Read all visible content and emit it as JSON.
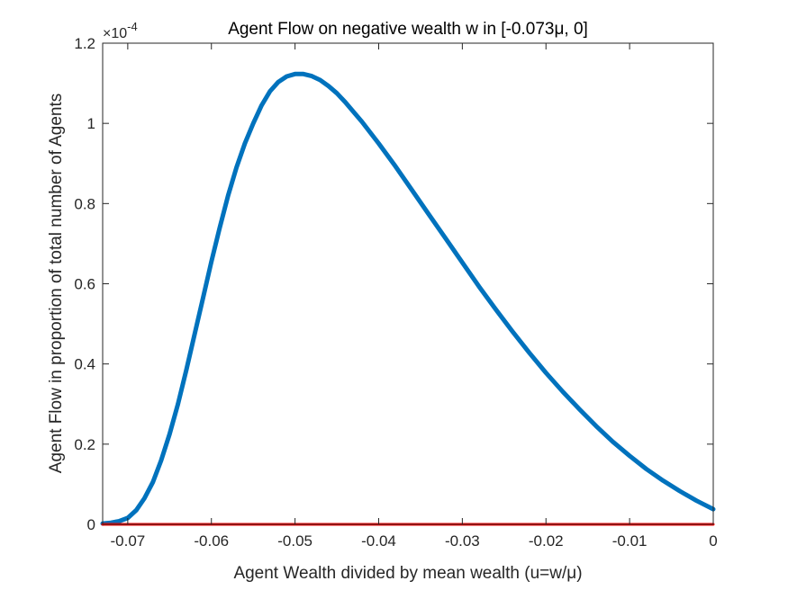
{
  "chart_data": {
    "type": "line",
    "title": "Agent Flow on negative wealth w in [-0.073μ, 0]",
    "xlabel": "Agent Wealth divided by mean wealth (u=w/μ)",
    "ylabel": "Agent Flow in proportion of total number of Agents",
    "y_multiplier_base": "×10",
    "y_multiplier_exponent": "-4",
    "xlim": [
      -0.073,
      0
    ],
    "ylim": [
      0,
      1.2
    ],
    "x_ticks": [
      -0.07,
      -0.06,
      -0.05,
      -0.04,
      -0.03,
      -0.02,
      -0.01,
      0
    ],
    "x_tick_labels": [
      "-0.07",
      "-0.06",
      "-0.05",
      "-0.04",
      "-0.03",
      "-0.02",
      "-0.01",
      "0"
    ],
    "y_ticks": [
      0,
      0.2,
      0.4,
      0.6,
      0.8,
      1,
      1.2
    ],
    "y_tick_labels": [
      "0",
      "0.2",
      "0.4",
      "0.6",
      "0.8",
      "1",
      "1.2"
    ],
    "grid": false,
    "series": [
      {
        "color": "#0072BD",
        "x": [
          -0.073,
          -0.072,
          -0.071,
          -0.07,
          -0.069,
          -0.068,
          -0.067,
          -0.066,
          -0.065,
          -0.064,
          -0.063,
          -0.062,
          -0.061,
          -0.06,
          -0.059,
          -0.058,
          -0.057,
          -0.056,
          -0.055,
          -0.054,
          -0.053,
          -0.052,
          -0.051,
          -0.05,
          -0.049,
          -0.048,
          -0.047,
          -0.046,
          -0.045,
          -0.044,
          -0.042,
          -0.04,
          -0.038,
          -0.036,
          -0.034,
          -0.032,
          -0.03,
          -0.028,
          -0.026,
          -0.024,
          -0.022,
          -0.02,
          -0.018,
          -0.016,
          -0.014,
          -0.012,
          -0.01,
          -0.008,
          -0.006,
          -0.004,
          -0.002,
          0.0
        ],
        "y": [
          0.002,
          0.004,
          0.008,
          0.016,
          0.035,
          0.065,
          0.105,
          0.16,
          0.225,
          0.3,
          0.385,
          0.475,
          0.565,
          0.655,
          0.74,
          0.82,
          0.89,
          0.95,
          1.0,
          1.045,
          1.08,
          1.103,
          1.117,
          1.123,
          1.123,
          1.118,
          1.108,
          1.093,
          1.075,
          1.053,
          1.004,
          0.95,
          0.893,
          0.833,
          0.773,
          0.713,
          0.653,
          0.593,
          0.536,
          0.481,
          0.428,
          0.378,
          0.331,
          0.287,
          0.245,
          0.206,
          0.171,
          0.138,
          0.109,
          0.083,
          0.059,
          0.038
        ]
      },
      {
        "color": "#FF0000",
        "x": [
          -0.073,
          0.0
        ],
        "y": [
          0,
          0
        ]
      }
    ]
  }
}
